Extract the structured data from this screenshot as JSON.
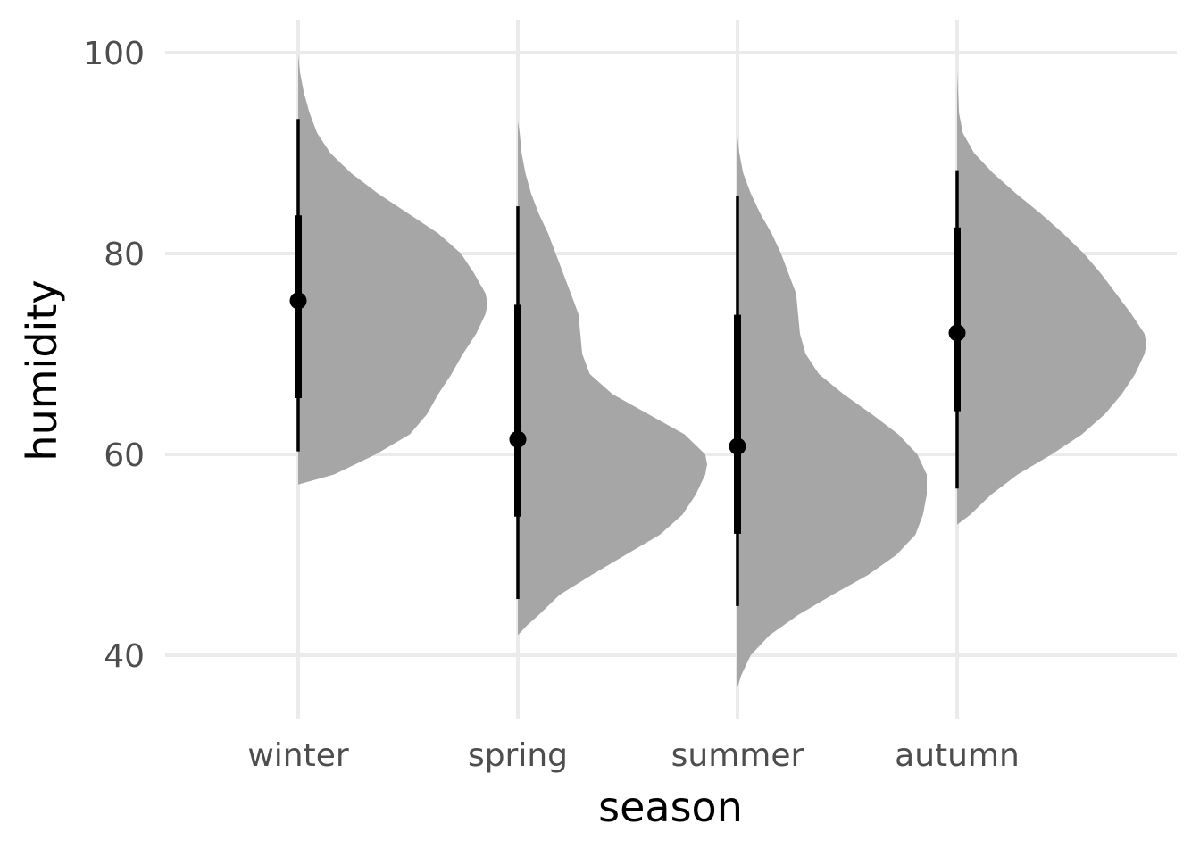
{
  "chart_data": {
    "type": "half-eye",
    "xlabel": "season",
    "ylabel": "humidity",
    "categories": [
      "winter",
      "spring",
      "summer",
      "autumn"
    ],
    "ylim": [
      33.5,
      103
    ],
    "yticks": [
      40,
      60,
      80,
      100
    ],
    "grid": true,
    "density_color": "#a6a6a6",
    "interval_color": "#000000",
    "series": [
      {
        "category": "winter",
        "median": 75.3,
        "interval_66": [
          65.6,
          83.8
        ],
        "interval_95": [
          60.3,
          93.4
        ],
        "density": [
          [
            57.0,
            0.0
          ],
          [
            58.0,
            0.19
          ],
          [
            60.0,
            0.41
          ],
          [
            62.0,
            0.59
          ],
          [
            64.0,
            0.68
          ],
          [
            66.0,
            0.74
          ],
          [
            68.0,
            0.81
          ],
          [
            70.0,
            0.87
          ],
          [
            72.0,
            0.94
          ],
          [
            74.0,
            0.99
          ],
          [
            75.0,
            1.0
          ],
          [
            76.0,
            0.99
          ],
          [
            78.0,
            0.93
          ],
          [
            80.0,
            0.86
          ],
          [
            82.0,
            0.74
          ],
          [
            84.0,
            0.58
          ],
          [
            86.0,
            0.42
          ],
          [
            88.0,
            0.28
          ],
          [
            90.0,
            0.17
          ],
          [
            92.0,
            0.1
          ],
          [
            94.0,
            0.06
          ],
          [
            96.0,
            0.03
          ],
          [
            98.0,
            0.01
          ],
          [
            99.8,
            0.0
          ]
        ]
      },
      {
        "category": "spring",
        "median": 61.5,
        "interval_66": [
          53.8,
          74.9
        ],
        "interval_95": [
          45.6,
          84.7
        ],
        "density": [
          [
            42.0,
            0.0
          ],
          [
            43.0,
            0.05
          ],
          [
            44.0,
            0.11
          ],
          [
            46.0,
            0.22
          ],
          [
            48.0,
            0.39
          ],
          [
            50.0,
            0.57
          ],
          [
            52.0,
            0.75
          ],
          [
            54.0,
            0.87
          ],
          [
            56.0,
            0.94
          ],
          [
            58.0,
            0.99
          ],
          [
            59.0,
            1.0
          ],
          [
            60.0,
            0.99
          ],
          [
            62.0,
            0.88
          ],
          [
            64.0,
            0.69
          ],
          [
            66.0,
            0.5
          ],
          [
            68.0,
            0.38
          ],
          [
            70.0,
            0.34
          ],
          [
            72.0,
            0.33
          ],
          [
            74.0,
            0.32
          ],
          [
            76.0,
            0.28
          ],
          [
            78.0,
            0.24
          ],
          [
            80.0,
            0.2
          ],
          [
            82.0,
            0.16
          ],
          [
            84.0,
            0.11
          ],
          [
            86.0,
            0.07
          ],
          [
            88.0,
            0.04
          ],
          [
            90.0,
            0.02
          ],
          [
            92.0,
            0.01
          ],
          [
            93.2,
            0.0
          ]
        ]
      },
      {
        "category": "summer",
        "median": 60.8,
        "interval_66": [
          52.1,
          73.9
        ],
        "interval_95": [
          44.9,
          85.7
        ],
        "density": [
          [
            36.8,
            0.0
          ],
          [
            38.0,
            0.02
          ],
          [
            40.0,
            0.07
          ],
          [
            42.0,
            0.17
          ],
          [
            44.0,
            0.32
          ],
          [
            46.0,
            0.5
          ],
          [
            48.0,
            0.69
          ],
          [
            50.0,
            0.84
          ],
          [
            52.0,
            0.94
          ],
          [
            54.0,
            0.98
          ],
          [
            56.0,
            1.0
          ],
          [
            58.0,
            1.0
          ],
          [
            60.0,
            0.95
          ],
          [
            62.0,
            0.85
          ],
          [
            64.0,
            0.71
          ],
          [
            66.0,
            0.56
          ],
          [
            68.0,
            0.43
          ],
          [
            70.0,
            0.36
          ],
          [
            72.0,
            0.33
          ],
          [
            74.0,
            0.32
          ],
          [
            76.0,
            0.31
          ],
          [
            78.0,
            0.27
          ],
          [
            80.0,
            0.23
          ],
          [
            82.0,
            0.18
          ],
          [
            84.0,
            0.12
          ],
          [
            86.0,
            0.07
          ],
          [
            88.0,
            0.03
          ],
          [
            90.0,
            0.01
          ],
          [
            91.6,
            0.0
          ]
        ]
      },
      {
        "category": "autumn",
        "median": 72.1,
        "interval_66": [
          64.3,
          82.6
        ],
        "interval_95": [
          56.6,
          88.3
        ],
        "density": [
          [
            53.0,
            0.0
          ],
          [
            54.0,
            0.07
          ],
          [
            56.0,
            0.18
          ],
          [
            58.0,
            0.32
          ],
          [
            60.0,
            0.5
          ],
          [
            62.0,
            0.66
          ],
          [
            64.0,
            0.78
          ],
          [
            66.0,
            0.87
          ],
          [
            68.0,
            0.94
          ],
          [
            70.0,
            0.99
          ],
          [
            71.0,
            1.0
          ],
          [
            72.0,
            0.99
          ],
          [
            74.0,
            0.92
          ],
          [
            76.0,
            0.84
          ],
          [
            78.0,
            0.76
          ],
          [
            80.0,
            0.67
          ],
          [
            82.0,
            0.56
          ],
          [
            84.0,
            0.44
          ],
          [
            86.0,
            0.31
          ],
          [
            88.0,
            0.19
          ],
          [
            90.0,
            0.09
          ],
          [
            92.0,
            0.03
          ],
          [
            94.0,
            0.01
          ],
          [
            96.0,
            0.005
          ],
          [
            98.2,
            0.0
          ]
        ]
      }
    ]
  }
}
